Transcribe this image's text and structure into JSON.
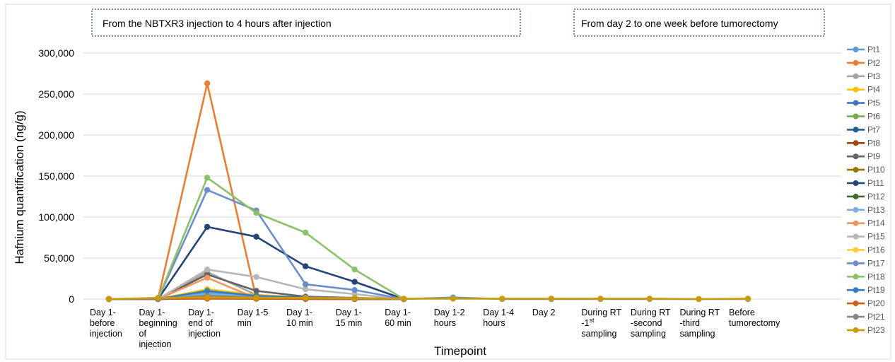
{
  "chart_data": {
    "type": "line",
    "xlabel": "Timepoint",
    "ylabel": "Hafnium quantification (ng/g)",
    "ylim": [
      0,
      300000
    ],
    "yticks": [
      "0",
      "50,000",
      "100,000",
      "150,000",
      "200,000",
      "250,000",
      "300,000"
    ],
    "grid": true,
    "legend_position": "right",
    "annotations": [
      "From the NBTXR3 injection to 4 hours after injection",
      "From day 2 to one week before tumorectomy"
    ],
    "categories": [
      [
        "Day 1-",
        "before",
        "injection"
      ],
      [
        "Day 1-",
        "beginning",
        "of",
        "injection"
      ],
      [
        "Day 1-",
        "end of",
        "injection"
      ],
      [
        "Day 1-5",
        "min"
      ],
      [
        "Day 1-",
        "10 min"
      ],
      [
        "Day 1-",
        "15 min"
      ],
      [
        "Day 1-",
        "60 min"
      ],
      [
        "Day 1-2",
        "hours"
      ],
      [
        "Day 1-4",
        "hours"
      ],
      [
        "Day 2"
      ],
      [
        "During RT",
        "-1st",
        "sampling"
      ],
      [
        "During RT",
        "-second",
        "sampling"
      ],
      [
        "During RT",
        "-third",
        "sampling"
      ],
      [
        "Before",
        "tumorectomy"
      ]
    ],
    "series": [
      {
        "name": "Pt1",
        "color": "#5B9BD5",
        "values": [
          0,
          1000,
          8000,
          3000,
          1000,
          500,
          0,
          2000,
          0,
          0,
          0,
          0,
          0,
          0
        ]
      },
      {
        "name": "Pt2",
        "color": "#ED7D31",
        "values": [
          0,
          0,
          263000,
          500,
          0,
          0,
          0,
          null,
          null,
          null,
          null,
          null,
          null,
          null
        ]
      },
      {
        "name": "Pt3",
        "color": "#A5A5A5",
        "values": [
          0,
          0,
          33000,
          5000,
          2000,
          1000,
          0,
          null,
          null,
          null,
          null,
          null,
          null,
          null
        ]
      },
      {
        "name": "Pt4",
        "color": "#FFC000",
        "values": [
          0,
          0,
          12000,
          5000,
          2000,
          1000,
          0,
          null,
          null,
          null,
          null,
          null,
          null,
          null
        ]
      },
      {
        "name": "Pt5",
        "color": "#4472C4",
        "values": [
          0,
          0,
          5000,
          2000,
          1000,
          500,
          0,
          null,
          null,
          null,
          null,
          null,
          null,
          null
        ]
      },
      {
        "name": "Pt6",
        "color": "#70AD47",
        "values": [
          0,
          0,
          3000,
          1500,
          800,
          400,
          0,
          null,
          null,
          null,
          null,
          null,
          null,
          null
        ]
      },
      {
        "name": "Pt7",
        "color": "#255E91",
        "values": [
          0,
          0,
          2000,
          1000,
          500,
          300,
          0,
          null,
          null,
          null,
          null,
          null,
          null,
          null
        ]
      },
      {
        "name": "Pt8",
        "color": "#9E480E",
        "values": [
          0,
          0,
          1500,
          800,
          400,
          200,
          0,
          null,
          null,
          null,
          null,
          null,
          null,
          null
        ]
      },
      {
        "name": "Pt9",
        "color": "#636363",
        "values": [
          0,
          0,
          30000,
          10000,
          3000,
          1500,
          0,
          null,
          null,
          null,
          null,
          null,
          null,
          null
        ]
      },
      {
        "name": "Pt10",
        "color": "#997300",
        "values": [
          0,
          0,
          1000,
          500,
          300,
          200,
          0,
          null,
          null,
          null,
          null,
          null,
          null,
          null
        ]
      },
      {
        "name": "Pt11",
        "color": "#264478",
        "values": [
          0,
          0,
          88000,
          76000,
          40000,
          21000,
          0,
          null,
          null,
          null,
          null,
          null,
          null,
          null
        ]
      },
      {
        "name": "Pt12",
        "color": "#43682B",
        "values": [
          0,
          0,
          1000,
          500,
          300,
          200,
          0,
          null,
          null,
          null,
          null,
          null,
          null,
          null
        ]
      },
      {
        "name": "Pt13",
        "color": "#7CAFDD",
        "values": [
          0,
          0,
          6000,
          3000,
          1500,
          800,
          0,
          null,
          null,
          null,
          null,
          null,
          null,
          null
        ]
      },
      {
        "name": "Pt14",
        "color": "#F1975A",
        "values": [
          0,
          0,
          26000,
          1000,
          500,
          300,
          0,
          null,
          null,
          null,
          null,
          null,
          null,
          null
        ]
      },
      {
        "name": "Pt15",
        "color": "#B7B7B7",
        "values": [
          0,
          0,
          36000,
          27000,
          12000,
          6000,
          0,
          null,
          null,
          null,
          null,
          null,
          null,
          null
        ]
      },
      {
        "name": "Pt16",
        "color": "#FFCD33",
        "values": [
          0,
          0,
          10000,
          4000,
          2000,
          1000,
          0,
          null,
          null,
          null,
          null,
          null,
          null,
          null
        ]
      },
      {
        "name": "Pt17",
        "color": "#698ED0",
        "values": [
          0,
          0,
          133000,
          108000,
          18000,
          11000,
          0,
          null,
          null,
          null,
          null,
          null,
          null,
          null
        ]
      },
      {
        "name": "Pt18",
        "color": "#8CC168",
        "values": [
          0,
          0,
          148000,
          105000,
          81000,
          36000,
          0,
          null,
          null,
          null,
          null,
          null,
          null,
          null
        ]
      },
      {
        "name": "Pt19",
        "color": "#327DC2",
        "values": [
          0,
          0,
          10000,
          4000,
          2000,
          1000,
          0,
          null,
          null,
          null,
          null,
          null,
          null,
          null
        ]
      },
      {
        "name": "Pt20",
        "color": "#D26012",
        "values": [
          0,
          0,
          500,
          300,
          200,
          100,
          0,
          null,
          null,
          null,
          null,
          null,
          null,
          null
        ]
      },
      {
        "name": "Pt21",
        "color": "#848484",
        "values": [
          0,
          0,
          4000,
          2000,
          1000,
          500,
          0,
          null,
          null,
          null,
          null,
          null,
          null,
          null
        ]
      },
      {
        "name": "Pt23",
        "color": "#CC9A06",
        "values": [
          0,
          1500,
          2000,
          1500,
          1500,
          1000,
          500,
          500,
          500,
          500,
          500,
          500,
          0,
          500
        ]
      }
    ]
  }
}
